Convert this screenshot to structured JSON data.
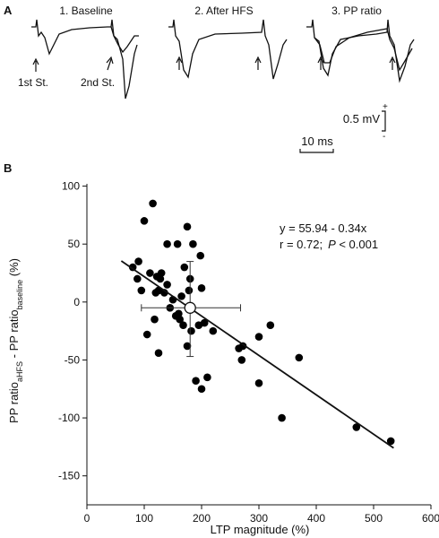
{
  "panel_a": {
    "label": "A",
    "titles": [
      "1. Baseline",
      "2. After HFS",
      "3. PP ratio"
    ],
    "stim_labels": [
      "1st St.",
      "2nd St."
    ],
    "scale_v": "0.5 mV",
    "scale_t": "10 ms",
    "plus": "+",
    "minus": "-"
  },
  "chart_data": {
    "type": "scatter",
    "panel": "B",
    "xlabel": "LTP magnitude (%)",
    "ylabel_parts": [
      "PP ratio",
      "aHFS",
      " - PP ratio",
      "baseline",
      " (%)"
    ],
    "annotation": [
      "y = 55.94 - 0.34x",
      "r = 0.72;",
      "P",
      " < 0.001"
    ],
    "x": [
      80,
      90,
      88,
      95,
      100,
      105,
      110,
      115,
      118,
      120,
      122,
      125,
      125,
      128,
      130,
      135,
      140,
      140,
      145,
      150,
      155,
      158,
      160,
      162,
      165,
      168,
      170,
      175,
      175,
      178,
      180,
      182,
      185,
      190,
      195,
      198,
      200,
      200,
      205,
      210,
      220,
      265,
      270,
      272,
      300,
      300,
      320,
      340,
      370,
      470,
      530
    ],
    "y": [
      30,
      35,
      20,
      10,
      70,
      -28,
      25,
      85,
      -15,
      8,
      22,
      -44,
      10,
      20,
      25,
      8,
      50,
      15,
      -5,
      2,
      -12,
      50,
      -10,
      -15,
      5,
      -20,
      30,
      65,
      -38,
      10,
      20,
      -25,
      50,
      -68,
      -20,
      40,
      -75,
      12,
      -18,
      -65,
      -25,
      -40,
      -50,
      -38,
      -30,
      -70,
      -20,
      -100,
      -48,
      -108,
      -120
    ],
    "color": "#000000",
    "mean": {
      "x": 180,
      "y": -5,
      "x_range": [
        95,
        268
      ],
      "y_range": [
        -47,
        35
      ]
    },
    "fit": {
      "x": [
        60,
        535
      ],
      "y": [
        35.5,
        -126
      ]
    },
    "xlim": [
      0,
      600
    ],
    "xticks": [
      0,
      100,
      200,
      300,
      400,
      500,
      600
    ],
    "ylim": [
      -175,
      102
    ],
    "yticks": [
      100,
      50,
      0,
      -50,
      -100,
      -150
    ]
  }
}
